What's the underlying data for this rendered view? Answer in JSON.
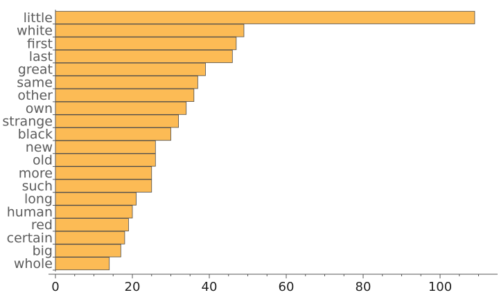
{
  "chart_data": {
    "type": "bar",
    "orientation": "horizontal",
    "categories": [
      "little",
      "white",
      "first",
      "last",
      "great",
      "same",
      "other",
      "own",
      "strange",
      "black",
      "new",
      "old",
      "more",
      "such",
      "long",
      "human",
      "red",
      "certain",
      "big",
      "whole"
    ],
    "values": [
      109,
      49,
      47,
      46,
      39,
      37,
      36,
      34,
      32,
      30,
      26,
      26,
      25,
      25,
      21,
      20,
      19,
      18,
      17,
      14
    ],
    "title": "",
    "xlabel": "",
    "ylabel": "",
    "xlim": [
      -1,
      114
    ],
    "xticks": [
      0,
      20,
      40,
      60,
      80,
      100
    ],
    "bar_color": "#fcbb55",
    "grid": false
  }
}
